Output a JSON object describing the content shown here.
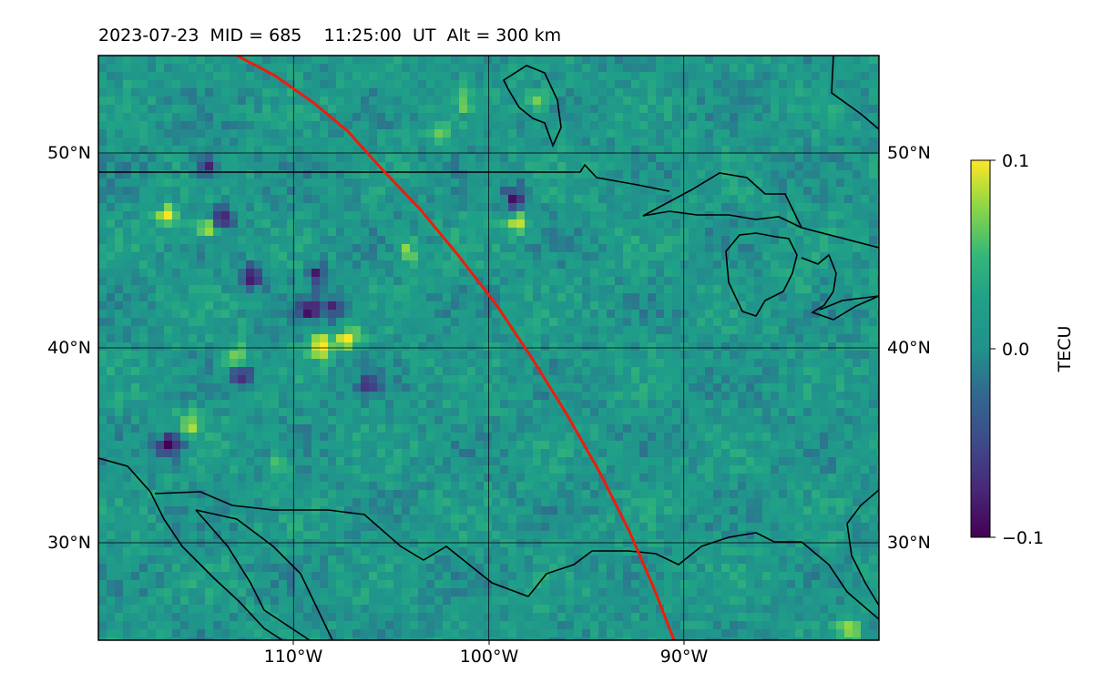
{
  "title": "2023-07-23  MID = 685    11:25:00  UT  Alt = 300 km",
  "map": {
    "lon_range": [
      -120,
      -80
    ],
    "lat_range": [
      25,
      55
    ],
    "lon_ticks": [
      -110,
      -100,
      -90
    ],
    "lat_ticks": [
      30,
      40,
      50
    ],
    "lon_tick_labels": [
      "110°W",
      "100°W",
      "90°W"
    ],
    "lat_tick_labels_left": [
      "30°N",
      "40°N",
      "50°N"
    ],
    "lat_tick_labels_right": [
      "30°N",
      "40°N",
      "50°N"
    ],
    "track_color": "#ee1c0c",
    "coastline_color": "#000000",
    "track_lonlat": [
      [
        -112.9,
        55.0
      ],
      [
        -111.0,
        54.0
      ],
      [
        -109.0,
        52.6
      ],
      [
        -107.2,
        51.1
      ],
      [
        -105.5,
        49.2
      ],
      [
        -103.5,
        47.1
      ],
      [
        -101.6,
        44.8
      ],
      [
        -99.6,
        42.2
      ],
      [
        -97.8,
        39.5
      ],
      [
        -96.0,
        36.6
      ],
      [
        -94.3,
        33.6
      ],
      [
        -92.8,
        30.6
      ],
      [
        -91.5,
        27.6
      ],
      [
        -90.5,
        25.0
      ]
    ],
    "tec_hotspots": [
      {
        "lon": -116.5,
        "lat": 46.7,
        "v": 0.1
      },
      {
        "lon": -114.5,
        "lat": 46.2,
        "v": 0.1
      },
      {
        "lon": -113.7,
        "lat": 46.7,
        "v": -0.1
      },
      {
        "lon": -112.2,
        "lat": 43.6,
        "v": -0.1
      },
      {
        "lon": -109.2,
        "lat": 42.0,
        "v": -0.09
      },
      {
        "lon": -108.6,
        "lat": 40.1,
        "v": 0.1
      },
      {
        "lon": -107.2,
        "lat": 40.5,
        "v": 0.09
      },
      {
        "lon": -107.8,
        "lat": 42.0,
        "v": -0.08
      },
      {
        "lon": -112.6,
        "lat": 38.5,
        "v": -0.08
      },
      {
        "lon": -115.4,
        "lat": 36.1,
        "v": 0.08
      },
      {
        "lon": -116.3,
        "lat": 35.0,
        "v": -0.1
      },
      {
        "lon": -98.6,
        "lat": 46.4,
        "v": 0.09
      },
      {
        "lon": -98.6,
        "lat": 47.7,
        "v": -0.09
      },
      {
        "lon": -104.1,
        "lat": 45.0,
        "v": 0.07
      },
      {
        "lon": -101.2,
        "lat": 52.7,
        "v": 0.05
      },
      {
        "lon": -102.5,
        "lat": 51.0,
        "v": 0.05
      },
      {
        "lon": -84.0,
        "lat": 43.5,
        "v": 0.04
      },
      {
        "lon": -81.5,
        "lat": 25.5,
        "v": 0.08
      },
      {
        "lon": -97.5,
        "lat": 52.7,
        "v": 0.06
      },
      {
        "lon": -114.3,
        "lat": 49.3,
        "v": -0.07
      },
      {
        "lon": -108.8,
        "lat": 43.8,
        "v": -0.07
      },
      {
        "lon": -106.2,
        "lat": 38.1,
        "v": -0.05
      },
      {
        "lon": -112.9,
        "lat": 39.6,
        "v": 0.08
      },
      {
        "lon": -110.6,
        "lat": 34.0,
        "v": 0.06
      }
    ]
  },
  "colorbar": {
    "label": "TECU",
    "min": -0.1,
    "max": 0.1,
    "tick_labels": [
      "0.1",
      "0.0",
      "−0.1"
    ],
    "colormap": "viridis"
  }
}
